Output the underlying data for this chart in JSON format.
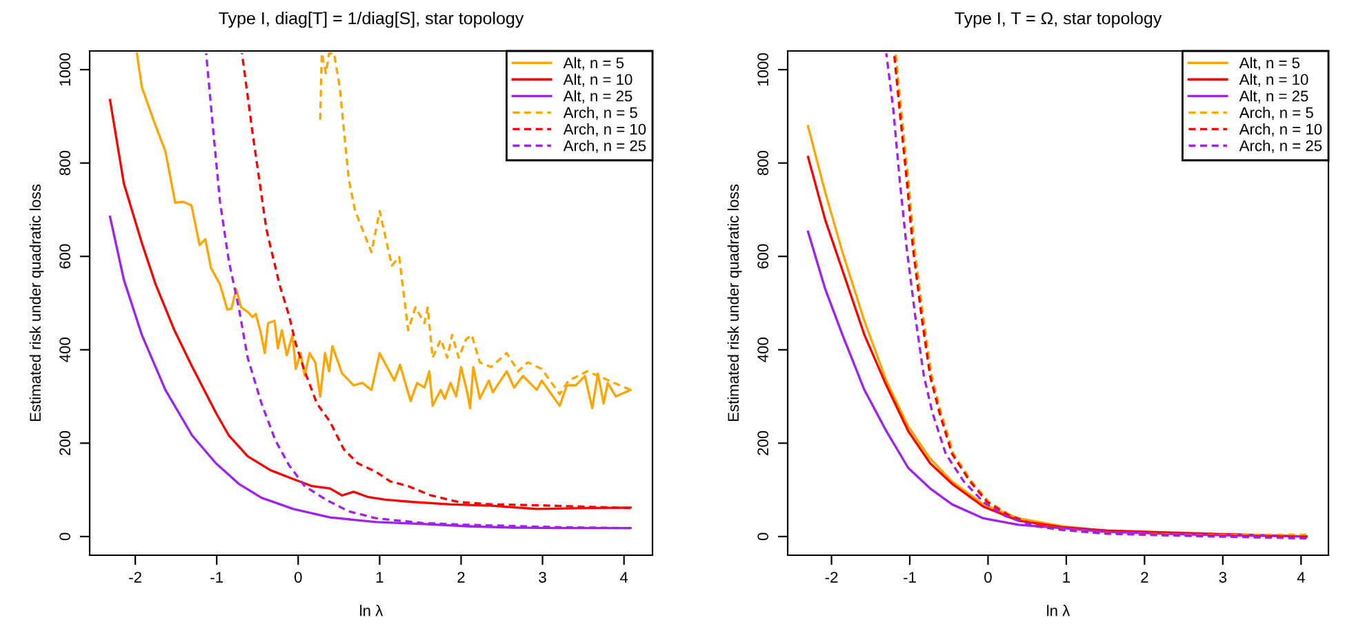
{
  "chart_data": [
    {
      "type": "line",
      "title": "Type I, diag[T] = 1/diag[S], star topology",
      "xlabel": "ln λ",
      "ylabel": "Estimated risk under quadratic loss",
      "xlim": [
        -2.56,
        4.35
      ],
      "ylim": [
        -40,
        1040
      ],
      "xticks": [
        -2,
        -1,
        0,
        1,
        2,
        3,
        4
      ],
      "yticks": [
        0,
        200,
        400,
        600,
        800,
        1000
      ],
      "legend": "top right",
      "series": [
        {
          "name": "Alt, n = 5",
          "color": "#ffa500",
          "line_style": "solid",
          "x": [
            -1.98,
            -1.92,
            -1.77,
            -1.63,
            -1.51,
            -1.41,
            -1.31,
            -1.21,
            -1.14,
            -1.07,
            -0.96,
            -0.87,
            -0.82,
            -0.76,
            -0.7,
            -0.62,
            -0.56,
            -0.52,
            -0.46,
            -0.41,
            -0.37,
            -0.29,
            -0.25,
            -0.2,
            -0.14,
            -0.07,
            -0.03,
            0.03,
            0.08,
            0.14,
            0.21,
            0.27,
            0.33,
            0.38,
            0.42,
            0.54,
            0.68,
            0.79,
            0.9,
            1.0,
            1.18,
            1.25,
            1.38,
            1.46,
            1.55,
            1.61,
            1.65,
            1.75,
            1.8,
            1.87,
            1.94,
            2.0,
            2.08,
            2.11,
            2.15,
            2.23,
            2.34,
            2.39,
            2.56,
            2.65,
            2.76,
            2.93,
            2.99,
            3.21,
            3.3,
            3.41,
            3.52,
            3.61,
            3.68,
            3.75,
            3.8,
            3.9,
            4.08
          ],
          "values": [
            1035,
            963,
            889,
            825,
            715,
            717,
            709,
            624,
            637,
            575,
            540,
            486,
            488,
            530,
            491,
            481,
            470,
            477,
            437,
            393,
            457,
            462,
            403,
            442,
            388,
            432,
            359,
            393,
            344,
            393,
            373,
            300,
            393,
            354,
            408,
            349,
            324,
            329,
            314,
            393,
            334,
            368,
            290,
            329,
            319,
            354,
            280,
            314,
            295,
            329,
            300,
            363,
            305,
            275,
            363,
            295,
            334,
            309,
            354,
            319,
            344,
            314,
            334,
            280,
            324,
            324,
            344,
            275,
            349,
            285,
            329,
            300,
            314
          ]
        },
        {
          "name": "Alt, n = 10",
          "color": "#ff0000",
          "line_style": "solid",
          "x": [
            -2.31,
            -2.14,
            -1.92,
            -1.75,
            -1.52,
            -1.3,
            -1.01,
            -0.85,
            -0.62,
            -0.34,
            -0.06,
            0.17,
            0.39,
            0.54,
            0.68,
            0.85,
            1.07,
            1.41,
            1.86,
            2.37,
            2.93,
            3.49,
            4.08
          ],
          "values": [
            935,
            756,
            629,
            540,
            442,
            363,
            265,
            216,
            172,
            142,
            123,
            108,
            103,
            88,
            96,
            85,
            79,
            74,
            69,
            66,
            59,
            61,
            62
          ]
        },
        {
          "name": "Alt, n = 25",
          "color": "#a020f0",
          "line_style": "solid",
          "x": [
            -2.31,
            -2.14,
            -1.92,
            -1.63,
            -1.3,
            -1.01,
            -0.73,
            -0.45,
            -0.06,
            0.39,
            0.96,
            1.52,
            2.08,
            2.65,
            3.21,
            4.08
          ],
          "values": [
            685,
            550,
            432,
            314,
            216,
            157,
            113,
            83,
            59,
            41,
            31,
            27,
            22,
            19,
            18,
            18
          ]
        },
        {
          "name": "Arch, n = 5",
          "color": "#ffa500",
          "line_style": "dashed",
          "x": [
            0.27,
            0.29,
            0.34,
            0.38,
            0.44,
            0.51,
            0.62,
            0.7,
            0.9,
            1.0,
            1.15,
            1.24,
            1.35,
            1.44,
            1.55,
            1.59,
            1.65,
            1.75,
            1.83,
            1.89,
            1.97,
            2.06,
            2.13,
            2.23,
            2.37,
            2.56,
            2.7,
            2.82,
            2.99,
            3.21,
            3.32,
            3.55,
            4.08
          ],
          "values": [
            889,
            1035,
            992,
            1035,
            1035,
            963,
            766,
            697,
            609,
            697,
            580,
            599,
            442,
            491,
            457,
            491,
            383,
            422,
            383,
            432,
            383,
            422,
            432,
            373,
            363,
            393,
            354,
            373,
            359,
            305,
            334,
            354,
            314
          ]
        },
        {
          "name": "Arch, n = 10",
          "color": "#ff0000",
          "line_style": "dashed",
          "x": [
            -0.69,
            -0.56,
            -0.39,
            -0.23,
            -0.11,
            -0.03,
            0.08,
            0.23,
            0.39,
            0.56,
            0.73,
            0.96,
            1.13,
            1.35,
            1.63,
            1.97,
            2.37,
            2.93,
            4.08
          ],
          "values": [
            1035,
            864,
            658,
            540,
            472,
            413,
            354,
            285,
            246,
            187,
            157,
            138,
            118,
            108,
            88,
            74,
            69,
            67,
            61
          ]
        },
        {
          "name": "Arch, n = 25",
          "color": "#a020f0",
          "line_style": "dashed",
          "x": [
            -1.13,
            -1.04,
            -0.96,
            -0.85,
            -0.73,
            -0.62,
            -0.45,
            -0.28,
            -0.11,
            0.08,
            0.34,
            0.62,
            0.96,
            1.52,
            2.08,
            3.21,
            4.08
          ],
          "values": [
            1035,
            864,
            717,
            589,
            491,
            383,
            285,
            206,
            152,
            108,
            79,
            54,
            39,
            29,
            25,
            20,
            18
          ]
        }
      ]
    },
    {
      "type": "line",
      "title": "Type I, T = Ω, star topology",
      "xlabel": "ln λ",
      "ylabel": "Estimated risk under quadratic loss",
      "xlim": [
        -2.56,
        4.35
      ],
      "ylim": [
        -40,
        1040
      ],
      "xticks": [
        -2,
        -1,
        0,
        1,
        2,
        3,
        4
      ],
      "yticks": [
        0,
        200,
        400,
        600,
        800,
        1000
      ],
      "legend": "top right",
      "series": [
        {
          "name": "Alt, n = 5",
          "color": "#ffa500",
          "line_style": "solid",
          "x": [
            -2.3,
            -2.08,
            -1.86,
            -1.58,
            -1.3,
            -1.02,
            -0.74,
            -0.46,
            -0.06,
            0.39,
            0.95,
            1.51,
            2.63,
            4.07
          ],
          "values": [
            879,
            737,
            609,
            462,
            334,
            236,
            167,
            118,
            69,
            39,
            22,
            12,
            5,
            0
          ]
        },
        {
          "name": "Alt, n = 10",
          "color": "#ff0000",
          "line_style": "solid",
          "x": [
            -2.3,
            -2.08,
            -1.86,
            -1.58,
            -1.3,
            -1.02,
            -0.74,
            -0.46,
            -0.06,
            0.39,
            0.95,
            1.51,
            2.63,
            4.07
          ],
          "values": [
            813,
            678,
            570,
            432,
            324,
            226,
            157,
            113,
            64,
            34,
            20,
            13,
            7,
            0
          ]
        },
        {
          "name": "Alt, n = 25",
          "color": "#a020f0",
          "line_style": "solid",
          "x": [
            -2.3,
            -2.08,
            -1.86,
            -1.58,
            -1.3,
            -1.02,
            -0.74,
            -0.46,
            -0.06,
            0.39,
            0.95,
            1.51,
            2.63,
            4.07
          ],
          "values": [
            653,
            530,
            432,
            314,
            226,
            147,
            103,
            69,
            39,
            25,
            18,
            10,
            4,
            0
          ]
        },
        {
          "name": "Arch, n = 5",
          "color": "#ffa500",
          "line_style": "dashed",
          "x": [
            -1.18,
            -1.11,
            -1.02,
            -0.94,
            -0.83,
            -0.72,
            -0.6,
            -0.44,
            -0.21,
            0.01,
            0.3,
            0.63,
            0.97,
            1.53,
            2.65,
            4.07
          ],
          "values": [
            1035,
            914,
            766,
            619,
            472,
            344,
            265,
            177,
            118,
            74,
            44,
            25,
            15,
            7,
            3,
            4
          ]
        },
        {
          "name": "Arch, n = 10",
          "color": "#ff0000",
          "line_style": "dashed",
          "x": [
            -1.2,
            -1.13,
            -1.04,
            -0.96,
            -0.85,
            -0.74,
            -0.62,
            -0.46,
            -0.23,
            -0.01,
            0.28,
            0.61,
            0.95,
            1.51,
            2.63,
            4.07
          ],
          "values": [
            1035,
            914,
            766,
            619,
            472,
            344,
            265,
            177,
            118,
            74,
            44,
            25,
            15,
            7,
            2,
            0
          ]
        },
        {
          "name": "Arch, n = 25",
          "color": "#a020f0",
          "line_style": "dashed",
          "x": [
            -1.3,
            -1.21,
            -1.13,
            -1.04,
            -0.93,
            -0.82,
            -0.71,
            -0.54,
            -0.31,
            -0.06,
            0.22,
            0.61,
            0.95,
            1.51,
            2.63,
            4.07
          ],
          "values": [
            1035,
            914,
            766,
            619,
            472,
            344,
            265,
            177,
            118,
            74,
            44,
            22,
            14,
            6,
            1,
            -4
          ]
        }
      ]
    }
  ]
}
